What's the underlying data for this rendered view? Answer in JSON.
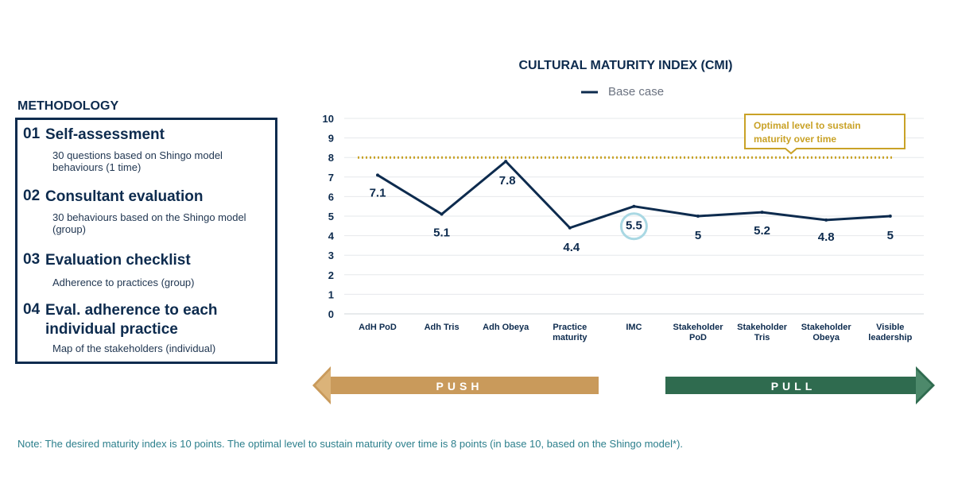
{
  "methodology": {
    "heading": "METHODOLOGY",
    "items": [
      {
        "num": "01",
        "title": "Self-assessment",
        "desc": "30 questions based on Shingo model behaviours (1 time)"
      },
      {
        "num": "02",
        "title": "Consultant evaluation",
        "desc": "30 behaviours based on the Shingo model (group)"
      },
      {
        "num": "03",
        "title": "Evaluation checklist",
        "desc": "Adherence to practices (group)"
      },
      {
        "num": "04",
        "title": "Eval. adherence to each individual practice",
        "desc": "Map of the stakeholders (individual)"
      }
    ]
  },
  "chart_data": {
    "type": "line",
    "title": "CULTURAL MATURITY INDEX (CMI)",
    "categories": [
      [
        "AdH PoD"
      ],
      [
        "Adh Tris"
      ],
      [
        "Adh Obeya"
      ],
      [
        "Practice",
        "maturity"
      ],
      [
        "IMC"
      ],
      [
        "Stakeholder",
        "PoD"
      ],
      [
        "Stakeholder",
        "Tris"
      ],
      [
        "Stakeholder",
        "Obeya"
      ],
      [
        "Visible",
        "leadership"
      ]
    ],
    "series": [
      {
        "name": "Base case",
        "values": [
          7.1,
          5.1,
          7.8,
          4.4,
          5.5,
          5,
          5.2,
          4.8,
          5
        ],
        "color": "#0d2b4e"
      }
    ],
    "data_labels": [
      "7.1",
      "5.1",
      "7.8",
      "4.4",
      "5.5",
      "5",
      "5.2",
      "4.8",
      "5"
    ],
    "highlight_index": 4,
    "highlight_color": "#a9d8e3",
    "ylim": [
      0,
      10
    ],
    "yticks": [
      0,
      1,
      2,
      3,
      4,
      5,
      6,
      7,
      8,
      9,
      10
    ],
    "grid": true,
    "legend": "top-center",
    "reference_line": {
      "value": 8,
      "label": [
        "Optimal level to sustain",
        "maturity over time"
      ],
      "color": "#c9a227"
    },
    "push_label": "PUSH",
    "pull_label": "PULL",
    "push_color": "#c99a5b",
    "pull_color": "#2f6b4f"
  },
  "note": "Note: The desired maturity index is 10 points. The optimal level to sustain maturity over time is 8 points (in base 10, based on the Shingo model*)."
}
